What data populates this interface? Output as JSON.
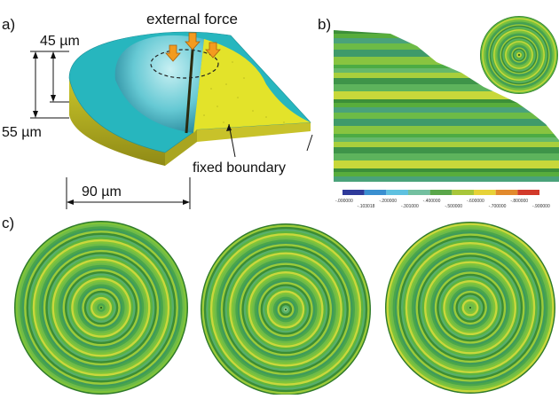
{
  "panels": {
    "a": {
      "label": "a)",
      "annotation_force": "external force",
      "annotation_boundary": "fixed boundary",
      "dim_depth": "45 µm",
      "dim_height": "55 µm",
      "dim_radius": "90 µm"
    },
    "b": {
      "label": "b)",
      "colorbar_colors": [
        "#2f3a9a",
        "#3a8fd0",
        "#5fc1e0",
        "#73c0a0",
        "#5aa74a",
        "#a8c63a",
        "#e7d238",
        "#e28a2d",
        "#d23a2a"
      ],
      "colorbar_ticks": [
        "-.000000",
        "-.103018",
        "-.200000",
        "-.301000",
        "-.400000",
        "-.500000",
        "-.600000",
        "-.700000",
        "-.800000",
        "-.900000"
      ]
    },
    "c": {
      "label": "c)"
    }
  },
  "colors": {
    "cyan": "#27b6be",
    "yellow": "#e3e32a",
    "green_dark": "#3c8c35",
    "green_mid": "#6ec04a",
    "arrow": "#f39b1f"
  }
}
